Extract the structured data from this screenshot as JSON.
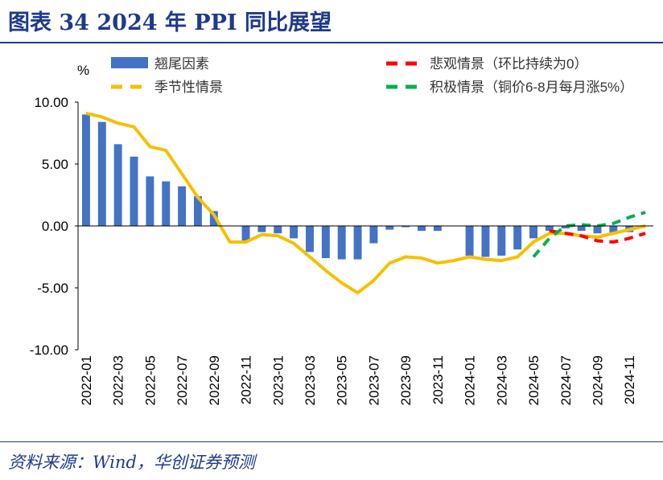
{
  "header": {
    "title": "图表 34   2024 年 PPI 同比展望"
  },
  "footer": {
    "source": "资料来源：Wind，华创证券预测"
  },
  "colors": {
    "bar": "#4472c4",
    "seasonal": "#f5c000",
    "pessimistic": "#ff0000",
    "optimistic": "#00b050",
    "axis": "#000000",
    "frame": "#1f3a8a"
  },
  "chart_data": {
    "type": "bar+line",
    "ylabel": "%",
    "ylim": [
      -10,
      10
    ],
    "yticks": [
      10,
      5,
      0,
      -5,
      -10
    ],
    "ytick_labels": [
      "10.00",
      "5.00",
      "0.00",
      "-5.00",
      "-10.00"
    ],
    "categories": [
      "2022-01",
      "2022-02",
      "2022-03",
      "2022-04",
      "2022-05",
      "2022-06",
      "2022-07",
      "2022-08",
      "2022-09",
      "2022-10",
      "2022-11",
      "2022-12",
      "2023-01",
      "2023-02",
      "2023-03",
      "2023-04",
      "2023-05",
      "2023-06",
      "2023-07",
      "2023-08",
      "2023-09",
      "2023-10",
      "2023-11",
      "2023-12",
      "2024-01",
      "2024-02",
      "2024-03",
      "2024-04",
      "2024-05",
      "2024-06",
      "2024-07",
      "2024-08",
      "2024-09",
      "2024-10",
      "2024-11",
      "2024-12"
    ],
    "xtick_labels": [
      "2022-01",
      "2022-03",
      "2022-05",
      "2022-07",
      "2022-09",
      "2022-11",
      "2023-01",
      "2023-03",
      "2023-05",
      "2023-07",
      "2023-09",
      "2023-11",
      "2024-01",
      "2024-03",
      "2024-05",
      "2024-07",
      "2024-09",
      "2024-11"
    ],
    "series": [
      {
        "name": "翘尾因素",
        "kind": "bar",
        "values": [
          9.0,
          8.4,
          6.6,
          5.6,
          4.0,
          3.6,
          3.2,
          2.4,
          1.2,
          0.0,
          -1.2,
          -0.5,
          -0.6,
          -1.0,
          -2.1,
          -2.6,
          -2.7,
          -2.7,
          -1.4,
          -0.3,
          -0.1,
          -0.4,
          -0.4,
          0.0,
          -2.4,
          -2.5,
          -2.4,
          -1.9,
          -1.0,
          -0.4,
          -0.2,
          -0.4,
          -0.6,
          -0.6,
          -0.5,
          0.0
        ]
      },
      {
        "name": "季节性情景",
        "kind": "line",
        "dashed": false,
        "values": [
          9.1,
          8.8,
          8.3,
          8.0,
          6.4,
          6.1,
          4.2,
          2.3,
          0.9,
          -1.3,
          -1.3,
          -0.7,
          -0.8,
          -1.4,
          -2.5,
          -3.6,
          -4.6,
          -5.4,
          -4.4,
          -3.0,
          -2.5,
          -2.6,
          -3.0,
          -2.8,
          -2.5,
          -2.7,
          -2.8,
          -2.5,
          -1.3,
          -0.6,
          -0.6,
          -0.8,
          -0.9,
          -0.6,
          -0.3,
          0.0
        ]
      },
      {
        "name": "季节性情景",
        "kind": "line",
        "dashed": true,
        "values": [
          null,
          null,
          null,
          null,
          null,
          null,
          null,
          null,
          null,
          null,
          null,
          null,
          null,
          null,
          null,
          null,
          null,
          null,
          null,
          null,
          null,
          null,
          null,
          null,
          null,
          null,
          null,
          null,
          null,
          -0.4,
          -0.6,
          -0.8,
          -0.9,
          -0.6,
          -0.3,
          0.0
        ]
      },
      {
        "name": "悲观情景（环比持续为0）",
        "kind": "line",
        "dashed": true,
        "values": [
          null,
          null,
          null,
          null,
          null,
          null,
          null,
          null,
          null,
          null,
          null,
          null,
          null,
          null,
          null,
          null,
          null,
          null,
          null,
          null,
          null,
          null,
          null,
          null,
          null,
          null,
          null,
          null,
          null,
          -0.4,
          -0.6,
          -0.8,
          -1.2,
          -1.3,
          -1.0,
          -0.6
        ]
      },
      {
        "name": "积极情景（铜价6-8月每月涨5%）",
        "kind": "line",
        "dashed": true,
        "values": [
          null,
          null,
          null,
          null,
          null,
          null,
          null,
          null,
          null,
          null,
          null,
          null,
          null,
          null,
          null,
          null,
          null,
          null,
          null,
          null,
          null,
          null,
          null,
          null,
          null,
          null,
          null,
          null,
          -2.5,
          -1.0,
          0.0,
          0.1,
          0.0,
          0.2,
          0.7,
          1.1
        ]
      }
    ],
    "legend": [
      {
        "label": "翘尾因素",
        "style": "bar"
      },
      {
        "label": "季节性情景",
        "style": "dashed"
      },
      {
        "label": "悲观情景（环比持续为0）",
        "style": "dashed"
      },
      {
        "label": "积极情景（铜价6-8月每月涨5%）",
        "style": "dashed"
      }
    ]
  }
}
